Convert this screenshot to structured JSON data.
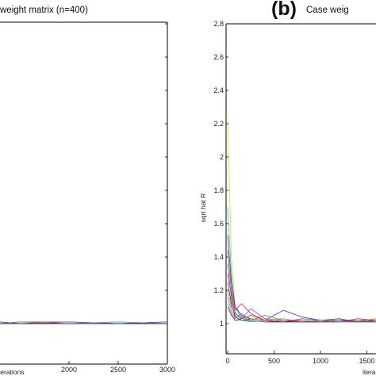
{
  "chart_data": [
    {
      "type": "line",
      "title": "weight matrix (n=400)",
      "xlabel": "iterations",
      "ylabel": "",
      "xlim": [
        0,
        3000
      ],
      "x_ticks": [
        2000,
        2500,
        3000
      ],
      "grid": false,
      "series_note": "",
      "series": [
        {
          "color": "#1f1fd0",
          "x": [
            0,
            500,
            1000,
            1500,
            2000,
            2500,
            3000
          ],
          "y": [
            1.01,
            1.0,
            1.01,
            1.0,
            1.01,
            1.0,
            1.01
          ]
        },
        {
          "color": "#d01f1f",
          "x": [
            0,
            500,
            1000,
            1500,
            2000,
            2500,
            3000
          ],
          "y": [
            1.0,
            1.01,
            1.0,
            1.01,
            1.0,
            1.01,
            1.0
          ]
        },
        {
          "color": "#1fa01f",
          "x": [
            0,
            500,
            1000,
            1500,
            2000,
            2500,
            3000
          ],
          "y": [
            1.01,
            1.0,
            1.0,
            1.01,
            1.01,
            1.0,
            1.0
          ]
        },
        {
          "color": "#20c0c0",
          "x": [
            0,
            500,
            1000,
            1500,
            2000,
            2500,
            3000
          ],
          "y": [
            1.0,
            1.0,
            1.01,
            1.0,
            1.0,
            1.01,
            1.0
          ]
        },
        {
          "color": "#c020c0",
          "x": [
            0,
            500,
            1000,
            1500,
            2000,
            2500,
            3000
          ],
          "y": [
            1.0,
            1.01,
            1.01,
            1.0,
            1.01,
            1.0,
            1.01
          ]
        },
        {
          "color": "#222222",
          "x": [
            0,
            500,
            1000,
            1500,
            2000,
            2500,
            3000
          ],
          "y": [
            1.0,
            1.0,
            1.0,
            1.0,
            1.0,
            1.0,
            1.0
          ]
        }
      ]
    },
    {
      "type": "line",
      "title": "Case weig",
      "panel_label": "(b)",
      "xlabel": "itera",
      "ylabel": "sqrt hat R",
      "xlim": [
        0,
        1850
      ],
      "ylim": [
        1.0,
        2.8
      ],
      "x_ticks": [
        0,
        500,
        1000,
        1500
      ],
      "y_ticks": [
        1,
        1.2,
        1.4,
        1.6,
        1.8,
        2,
        2.2,
        2.4,
        2.6,
        2.8
      ],
      "grid": false,
      "series": [
        {
          "color": "#d8d820",
          "x": [
            0,
            40,
            80,
            150,
            250,
            400,
            600,
            800,
            1000,
            1200,
            1400,
            1600,
            1850
          ],
          "y": [
            2.23,
            1.4,
            1.12,
            1.04,
            1.02,
            1.01,
            1.01,
            1.02,
            1.01,
            1.01,
            1.01,
            1.02,
            1.01
          ]
        },
        {
          "color": "#20c0c0",
          "x": [
            0,
            40,
            80,
            150,
            250,
            400,
            600,
            800,
            1000,
            1200,
            1400,
            1600,
            1850
          ],
          "y": [
            1.7,
            1.3,
            1.1,
            1.03,
            1.02,
            1.01,
            1.02,
            1.01,
            1.01,
            1.02,
            1.01,
            1.01,
            1.01
          ]
        },
        {
          "color": "#1f1fd0",
          "x": [
            0,
            40,
            80,
            150,
            250,
            400,
            600,
            800,
            1000,
            1200,
            1400,
            1600,
            1850
          ],
          "y": [
            1.53,
            1.25,
            1.1,
            1.05,
            1.03,
            1.02,
            1.08,
            1.04,
            1.02,
            1.03,
            1.01,
            1.02,
            1.01
          ]
        },
        {
          "color": "#d01f1f",
          "x": [
            0,
            40,
            80,
            150,
            250,
            400,
            600,
            800,
            1000,
            1200,
            1400,
            1600,
            1850
          ],
          "y": [
            1.44,
            1.2,
            1.08,
            1.12,
            1.06,
            1.02,
            1.01,
            1.03,
            1.02,
            1.01,
            1.03,
            1.02,
            1.02
          ]
        },
        {
          "color": "#1fa01f",
          "x": [
            0,
            40,
            80,
            150,
            250,
            400,
            600,
            800,
            1000,
            1200,
            1400,
            1600,
            1850
          ],
          "y": [
            1.36,
            1.15,
            1.06,
            1.04,
            1.02,
            1.05,
            1.02,
            1.01,
            1.02,
            1.01,
            1.02,
            1.01,
            1.02
          ]
        },
        {
          "color": "#c020c0",
          "x": [
            0,
            40,
            80,
            150,
            250,
            400,
            600,
            800,
            1000,
            1200,
            1400,
            1600,
            1850
          ],
          "y": [
            1.3,
            1.18,
            1.05,
            1.03,
            1.09,
            1.03,
            1.02,
            1.01,
            1.01,
            1.02,
            1.02,
            1.01,
            1.01
          ]
        },
        {
          "color": "#222222",
          "x": [
            0,
            40,
            80,
            150,
            250,
            400,
            600,
            800,
            1000,
            1200,
            1400,
            1600,
            1850
          ],
          "y": [
            1.25,
            1.12,
            1.04,
            1.02,
            1.02,
            1.01,
            1.01,
            1.02,
            1.01,
            1.01,
            1.02,
            1.02,
            1.01
          ]
        },
        {
          "color": "#e07020",
          "x": [
            0,
            40,
            80,
            150,
            250,
            400,
            600,
            800,
            1000,
            1200,
            1400,
            1600,
            1850
          ],
          "y": [
            1.2,
            1.1,
            1.07,
            1.02,
            1.03,
            1.02,
            1.03,
            1.01,
            1.02,
            1.02,
            1.01,
            1.03,
            1.02
          ]
        },
        {
          "color": "#7070e0",
          "x": [
            0,
            40,
            80,
            150,
            250,
            400,
            600,
            800,
            1000,
            1200,
            1400,
            1600,
            1850
          ],
          "y": [
            1.16,
            1.08,
            1.03,
            1.06,
            1.02,
            1.01,
            1.02,
            1.02,
            1.01,
            1.01,
            1.02,
            1.01,
            1.01
          ]
        },
        {
          "color": "#20a070",
          "x": [
            0,
            40,
            80,
            150,
            250,
            400,
            600,
            800,
            1000,
            1200,
            1400,
            1600,
            1850
          ],
          "y": [
            1.12,
            1.06,
            1.02,
            1.02,
            1.01,
            1.02,
            1.01,
            1.01,
            1.02,
            1.01,
            1.01,
            1.02,
            1.01
          ]
        },
        {
          "color": "#a02020",
          "x": [
            0,
            40,
            80,
            150,
            250,
            400,
            600,
            800,
            1000,
            1200,
            1400,
            1600,
            1850
          ],
          "y": [
            1.1,
            1.05,
            1.02,
            1.03,
            1.05,
            1.02,
            1.01,
            1.01,
            1.01,
            1.02,
            1.01,
            1.01,
            1.02
          ]
        }
      ]
    }
  ]
}
